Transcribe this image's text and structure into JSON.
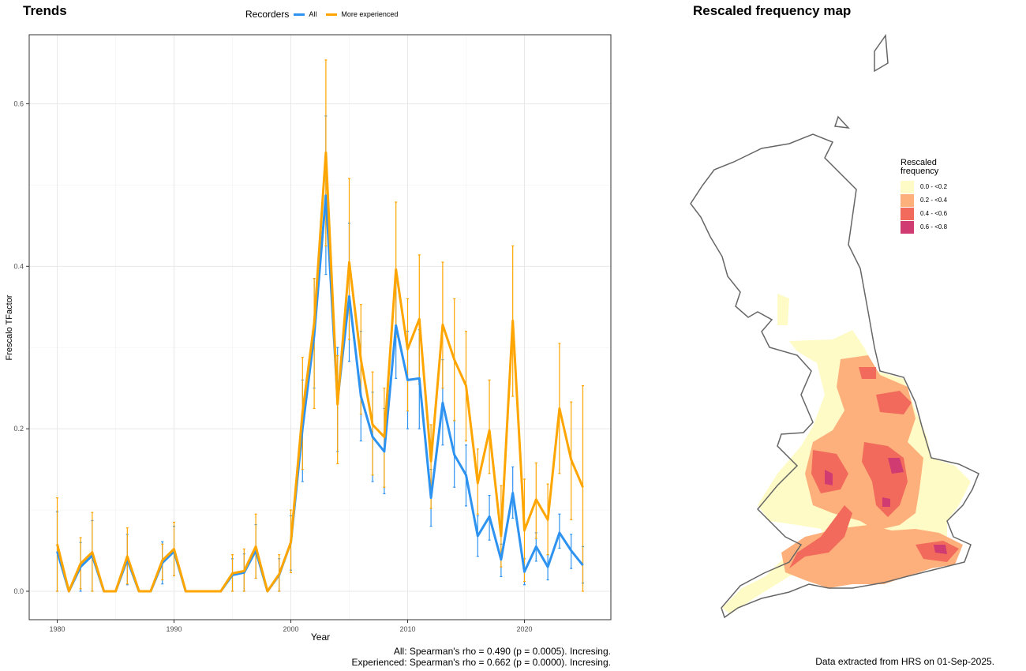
{
  "left_panel": {
    "title": "Trends"
  },
  "right_panel": {
    "title": "Rescaled frequency map"
  },
  "legend": {
    "title": "Recorders",
    "items": [
      {
        "label": "All",
        "color": "#2E93F0"
      },
      {
        "label": "More experienced",
        "color": "#FFA500"
      }
    ]
  },
  "notes": {
    "stats_all": "All: Spearman's rho = 0.490 (p = 0.0005). Incresing.",
    "stats_experienced": "Experienced: Spearman's rho = 0.662 (p = 0.0000). Incresing.",
    "source": "Data extracted from HRS on 01-Sep-2025."
  },
  "map_legend": {
    "title": "Rescaled frequency",
    "classes": [
      {
        "label": "0.0 - <0.2",
        "color": "#FFFBC6"
      },
      {
        "label": "0.2 - <0.4",
        "color": "#FDB07C"
      },
      {
        "label": "0.4 - <0.6",
        "color": "#F26A5B"
      },
      {
        "label": "0.6 - <0.8",
        "color": "#D03B72"
      }
    ]
  },
  "chart_data": {
    "type": "line",
    "xlabel": "Year",
    "ylabel": "Frescalo TFactor",
    "xlim": [
      1977.6,
      2027.4
    ],
    "ylim": [
      -0.035,
      0.685
    ],
    "xticks": [
      1980,
      1990,
      2000,
      2010,
      2020
    ],
    "yticks": [
      0.0,
      0.2,
      0.4,
      0.6
    ],
    "ytick_labels": [
      "0.0",
      "0.2",
      "0.4",
      "0.6"
    ],
    "grid": true,
    "legend_position": "top",
    "series": [
      {
        "name": "All",
        "color": "#2E93F0",
        "x": [
          1980,
          1981,
          1982,
          1983,
          1984,
          1985,
          1986,
          1987,
          1988,
          1989,
          1990,
          1991,
          1992,
          1993,
          1994,
          1995,
          1996,
          1997,
          1998,
          1999,
          2000,
          2001,
          2002,
          2003,
          2004,
          2005,
          2006,
          2007,
          2008,
          2009,
          2010,
          2011,
          2012,
          2013,
          2014,
          2015,
          2016,
          2017,
          2018,
          2019,
          2020,
          2021,
          2022,
          2023,
          2024,
          2025
        ],
        "y": [
          0.049,
          0.0,
          0.03,
          0.044,
          0.0,
          0.0,
          0.039,
          0.0,
          0.0,
          0.035,
          0.049,
          0.0,
          0.0,
          0.0,
          0.0,
          0.02,
          0.023,
          0.05,
          0.0,
          0.02,
          0.06,
          0.2,
          0.315,
          0.487,
          0.235,
          0.363,
          0.24,
          0.19,
          0.172,
          0.327,
          0.26,
          0.262,
          0.115,
          0.232,
          0.168,
          0.143,
          0.068,
          0.092,
          0.039,
          0.121,
          0.024,
          0.055,
          0.03,
          0.072,
          0.05,
          0.032
        ],
        "lo": [
          0.0,
          0.0,
          0.0,
          0.0,
          0.0,
          0.0,
          0.008,
          0.0,
          0.0,
          0.009,
          0.019,
          0.0,
          0.0,
          0.0,
          0.0,
          0.0,
          0.0,
          0.016,
          0.0,
          0.0,
          0.026,
          0.135,
          0.25,
          0.39,
          0.172,
          0.283,
          0.185,
          0.135,
          0.12,
          0.262,
          0.2,
          0.2,
          0.08,
          0.18,
          0.128,
          0.105,
          0.043,
          0.063,
          0.018,
          0.09,
          0.008,
          0.037,
          0.014,
          0.053,
          0.028,
          0.01
        ],
        "hi": [
          0.098,
          0.0,
          0.06,
          0.087,
          0.0,
          0.0,
          0.07,
          0.0,
          0.0,
          0.061,
          0.08,
          0.0,
          0.0,
          0.0,
          0.0,
          0.04,
          0.046,
          0.082,
          0.0,
          0.04,
          0.093,
          0.26,
          0.385,
          0.585,
          0.3,
          0.453,
          0.32,
          0.245,
          0.225,
          0.39,
          0.32,
          0.322,
          0.15,
          0.285,
          0.21,
          0.18,
          0.093,
          0.118,
          0.058,
          0.153,
          0.04,
          0.072,
          0.045,
          0.095,
          0.07,
          0.055
        ]
      },
      {
        "name": "More experienced",
        "color": "#FFA500",
        "x": [
          1980,
          1981,
          1982,
          1983,
          1984,
          1985,
          1986,
          1987,
          1988,
          1989,
          1990,
          1991,
          1992,
          1993,
          1994,
          1995,
          1996,
          1997,
          1998,
          1999,
          2000,
          2001,
          2002,
          2003,
          2004,
          2005,
          2006,
          2007,
          2008,
          2009,
          2010,
          2011,
          2012,
          2013,
          2014,
          2015,
          2016,
          2017,
          2018,
          2019,
          2020,
          2021,
          2022,
          2023,
          2024,
          2025
        ],
        "y": [
          0.058,
          0.0,
          0.034,
          0.048,
          0.0,
          0.0,
          0.043,
          0.0,
          0.0,
          0.038,
          0.052,
          0.0,
          0.0,
          0.0,
          0.0,
          0.022,
          0.025,
          0.055,
          0.0,
          0.021,
          0.06,
          0.22,
          0.33,
          0.54,
          0.23,
          0.405,
          0.285,
          0.205,
          0.19,
          0.396,
          0.298,
          0.335,
          0.16,
          0.328,
          0.285,
          0.253,
          0.133,
          0.198,
          0.068,
          0.333,
          0.075,
          0.113,
          0.088,
          0.225,
          0.162,
          0.128
        ],
        "lo": [
          0.0,
          0.0,
          0.003,
          0.0,
          0.0,
          0.0,
          0.009,
          0.0,
          0.0,
          0.014,
          0.019,
          0.0,
          0.0,
          0.0,
          0.0,
          0.0,
          0.0,
          0.016,
          0.0,
          0.0,
          0.023,
          0.15,
          0.225,
          0.425,
          0.157,
          0.31,
          0.218,
          0.143,
          0.128,
          0.313,
          0.222,
          0.255,
          0.102,
          0.25,
          0.21,
          0.185,
          0.095,
          0.145,
          0.03,
          0.24,
          0.012,
          0.065,
          0.045,
          0.145,
          0.088,
          0.0
        ],
        "hi": [
          0.115,
          0.0,
          0.066,
          0.097,
          0.0,
          0.0,
          0.078,
          0.0,
          0.0,
          0.058,
          0.085,
          0.0,
          0.0,
          0.0,
          0.0,
          0.045,
          0.052,
          0.095,
          0.0,
          0.045,
          0.1,
          0.288,
          0.385,
          0.654,
          0.29,
          0.508,
          0.353,
          0.27,
          0.25,
          0.479,
          0.36,
          0.414,
          0.205,
          0.405,
          0.36,
          0.32,
          0.175,
          0.26,
          0.13,
          0.425,
          0.138,
          0.158,
          0.132,
          0.305,
          0.233,
          0.253
        ]
      }
    ]
  }
}
